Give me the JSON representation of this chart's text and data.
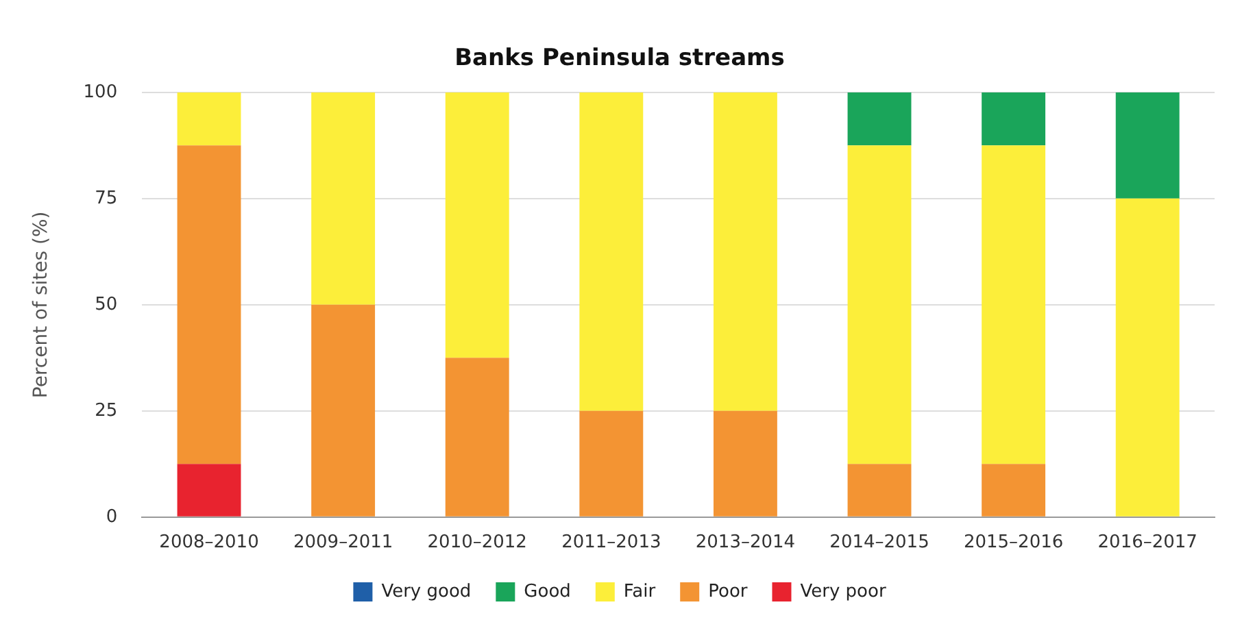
{
  "chart_data": {
    "type": "bar",
    "title": "Banks Peninsula streams",
    "ylabel": "Percent of sites (%)",
    "categories": [
      "2008–2010",
      "2009–2011",
      "2010–2012",
      "2011–2013",
      "2013–2014",
      "2014–2015",
      "2015–2016",
      "2016–2017"
    ],
    "series": [
      {
        "name": "Very poor",
        "color": "#e8232f",
        "values": [
          12.5,
          0,
          0,
          0,
          0,
          0,
          0,
          0
        ]
      },
      {
        "name": "Poor",
        "color": "#f39433",
        "values": [
          75,
          50,
          37.5,
          25,
          25,
          12.5,
          12.5,
          0
        ]
      },
      {
        "name": "Fair",
        "color": "#fcee3a",
        "values": [
          12.5,
          50,
          62.5,
          75,
          75,
          75,
          75,
          75
        ]
      },
      {
        "name": "Good",
        "color": "#1aa55a",
        "values": [
          0,
          0,
          0,
          0,
          0,
          12.5,
          12.5,
          25
        ]
      },
      {
        "name": "Very good",
        "color": "#1f5fa8",
        "values": [
          0,
          0,
          0,
          0,
          0,
          0,
          0,
          0
        ]
      }
    ],
    "stacked": true,
    "ylim": [
      0,
      100
    ],
    "yticks": [
      0,
      25,
      50,
      75,
      100
    ],
    "grid": "y",
    "legend": "bottom"
  }
}
